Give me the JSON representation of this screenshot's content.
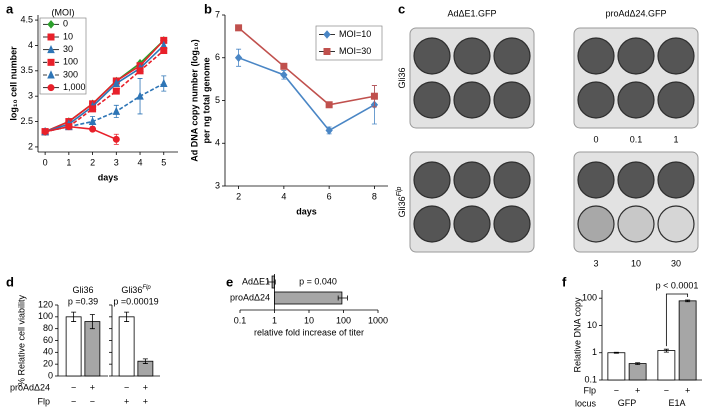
{
  "chart_data": [
    {
      "type": "line",
      "letter": "a",
      "xlabel": "days",
      "ylabel": "log₁₀ cell number",
      "legend_title": "(MOI)",
      "x": [
        0,
        1,
        2,
        3,
        4,
        5
      ],
      "xlim": [
        -0.3,
        5.6
      ],
      "xticks": [
        0,
        1,
        2,
        3,
        4,
        5
      ],
      "ylim": [
        1.9,
        4.6
      ],
      "yticks": [
        2,
        2.5,
        3,
        3.5,
        4,
        4.5
      ],
      "legend": "upper left",
      "series": [
        {
          "name": "0",
          "color": "#2ca02c",
          "dash": false,
          "marker": "diamond",
          "values": [
            2.3,
            2.5,
            2.85,
            3.3,
            3.65,
            4.1
          ]
        },
        {
          "name": "10",
          "color": "#e8202a",
          "dash": false,
          "marker": "square",
          "values": [
            2.3,
            2.5,
            2.85,
            3.3,
            3.6,
            4.1
          ]
        },
        {
          "name": "30",
          "color": "#2e75b6",
          "dash": false,
          "marker": "triangle",
          "values": [
            2.3,
            2.45,
            2.8,
            3.25,
            3.55,
            4.0
          ]
        },
        {
          "name": "100",
          "color": "#e8202a",
          "dash": true,
          "marker": "square",
          "values": [
            2.3,
            2.4,
            2.75,
            3.1,
            3.5,
            3.9
          ]
        },
        {
          "name": "300",
          "color": "#2e75b6",
          "dash": true,
          "marker": "triangle",
          "values": [
            2.3,
            2.4,
            2.5,
            2.7,
            3.0,
            3.25
          ],
          "errors": [
            null,
            null,
            0.1,
            0.12,
            0.35,
            0.15
          ]
        },
        {
          "name": "1,000",
          "color": "#e8202a",
          "dash": false,
          "marker": "circle",
          "values": [
            2.3,
            2.4,
            2.35,
            2.15,
            null,
            null
          ],
          "errors": [
            null,
            null,
            null,
            0.1,
            null,
            null
          ]
        }
      ]
    },
    {
      "type": "line",
      "letter": "b",
      "xlabel": "days",
      "ylabel": [
        "Ad DNA copy number (log₁₀)",
        "per ng total genome"
      ],
      "x": [
        2,
        4,
        6,
        8
      ],
      "xlim": [
        1.4,
        8.6
      ],
      "xticks": [
        2,
        4,
        6,
        8
      ],
      "ylim": [
        3,
        7
      ],
      "yticks": [
        3,
        4,
        5,
        6,
        7
      ],
      "legend": "upper right",
      "series": [
        {
          "name": "MOI=10",
          "color": "#4a86c5",
          "dash": false,
          "marker": "diamond",
          "values": [
            6.0,
            5.6,
            4.3,
            4.9
          ],
          "errors": [
            0.2,
            0.1,
            0.08,
            0.45
          ]
        },
        {
          "name": "MOI=30",
          "color": "#c0504d",
          "dash": false,
          "marker": "square",
          "values": [
            6.7,
            5.8,
            4.9,
            5.1
          ],
          "errors": [
            null,
            0.05,
            null,
            0.25
          ]
        }
      ]
    },
    {
      "type": "bar",
      "letter": "d",
      "ylabel": "% Relative cell viability",
      "ylim": [
        0,
        120
      ],
      "yticks": [
        0,
        20,
        40,
        60,
        80,
        100,
        120
      ],
      "colors": [
        "#ffffff",
        "#a6a6a6"
      ],
      "groups": [
        {
          "name": "Gli36",
          "values": [
            100,
            92
          ],
          "errors": [
            8,
            12
          ],
          "p": "p =0.39"
        },
        {
          "name": "Gli36",
          "name_sup": "Flp",
          "values": [
            100,
            25
          ],
          "errors": [
            8,
            4
          ],
          "p": "p =0.00019"
        }
      ],
      "rows": [
        {
          "label": "proAdΔ24",
          "signs": [
            "−",
            "+",
            "−",
            "+"
          ]
        },
        {
          "label": "Flp",
          "signs": [
            "−",
            "−",
            "+",
            "+"
          ]
        }
      ]
    },
    {
      "type": "hbar",
      "letter": "e",
      "xlabel": "relative fold increase of titer",
      "log": true,
      "xlim": [
        0.1,
        1000
      ],
      "xticks": [
        0.1,
        1,
        10,
        100,
        1000
      ],
      "color": "#a6a6a6",
      "categories": [
        "AdΔE1",
        "proAdΔ24"
      ],
      "values": [
        0.85,
        90
      ],
      "errors": [
        0.2,
        40
      ],
      "p": "p = 0.040"
    },
    {
      "type": "bar",
      "letter": "f",
      "ylabel": "Relative DNA copy",
      "log": true,
      "ylim": [
        0.1,
        200
      ],
      "yticks": [
        0.1,
        1,
        10,
        100
      ],
      "colors": [
        "#ffffff",
        "#a6a6a6"
      ],
      "groups": [
        {
          "name": "GFP",
          "values": [
            1,
            0.4
          ],
          "errors": [
            0.04,
            0.03
          ]
        },
        {
          "name": "E1A",
          "values": [
            1.2,
            80
          ],
          "errors": [
            0.15,
            6
          ],
          "p": "p < 0.0001"
        }
      ],
      "rows": [
        {
          "label": "Flp",
          "signs": [
            "−",
            "+",
            "−",
            "+"
          ]
        },
        {
          "label": "locus"
        }
      ]
    }
  ],
  "plate_panel": {
    "letter": "c",
    "columns": [
      "AdΔE1.GFP",
      "proAdΔ24.GFP"
    ],
    "rows": [
      {
        "name": "Gli36"
      },
      {
        "name": "Gli36",
        "sup": "Flp"
      }
    ],
    "moi_labels": [
      [
        "0",
        "0.1",
        "1"
      ],
      [
        "3",
        "10",
        "30"
      ]
    ]
  }
}
